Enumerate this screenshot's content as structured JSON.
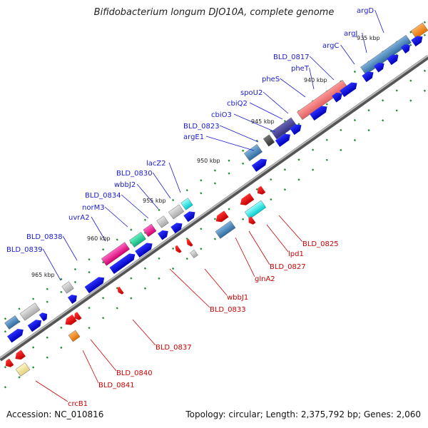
{
  "title": "Bifidobacterium longum DJO10A, complete genome",
  "footer": {
    "accession": "Accession: NC_010816",
    "topology": "Topology: circular; Length: 2,375,792 bp; Genes: 2,060"
  },
  "colors": {
    "backbone": "#8a8a8a",
    "forward_cds": "#0a10e0",
    "reverse_cds": "#e80000",
    "tick": "#1a8a2a",
    "label_forward": "#1b1bd0",
    "label_reverse": "#cc0000"
  },
  "scale_labels": [
    "935 kbp",
    "940 kbp",
    "945 kbp",
    "950 kbp",
    "955 kbp",
    "960 kbp",
    "965 kbp"
  ],
  "gene_labels_top": [
    "argD",
    "argJ",
    "argC",
    "BLD_0817",
    "pheT",
    "pheS",
    "spoU2",
    "cbiQ2",
    "cbiO3",
    "BLD_0823",
    "argE1",
    "lacZ2",
    "BLD_0830",
    "wbbJ2",
    "BLD_0834",
    "norM3",
    "uvrA2",
    "BLD_0838",
    "BLD_0839"
  ],
  "gene_labels_bottom": [
    "BLD_0825",
    "lpd1",
    "BLD_0827",
    "glnA2",
    "wbbJ1",
    "BLD_0833",
    "BLD_0837",
    "BLD_0840",
    "BLD_0841",
    "crcB1"
  ]
}
